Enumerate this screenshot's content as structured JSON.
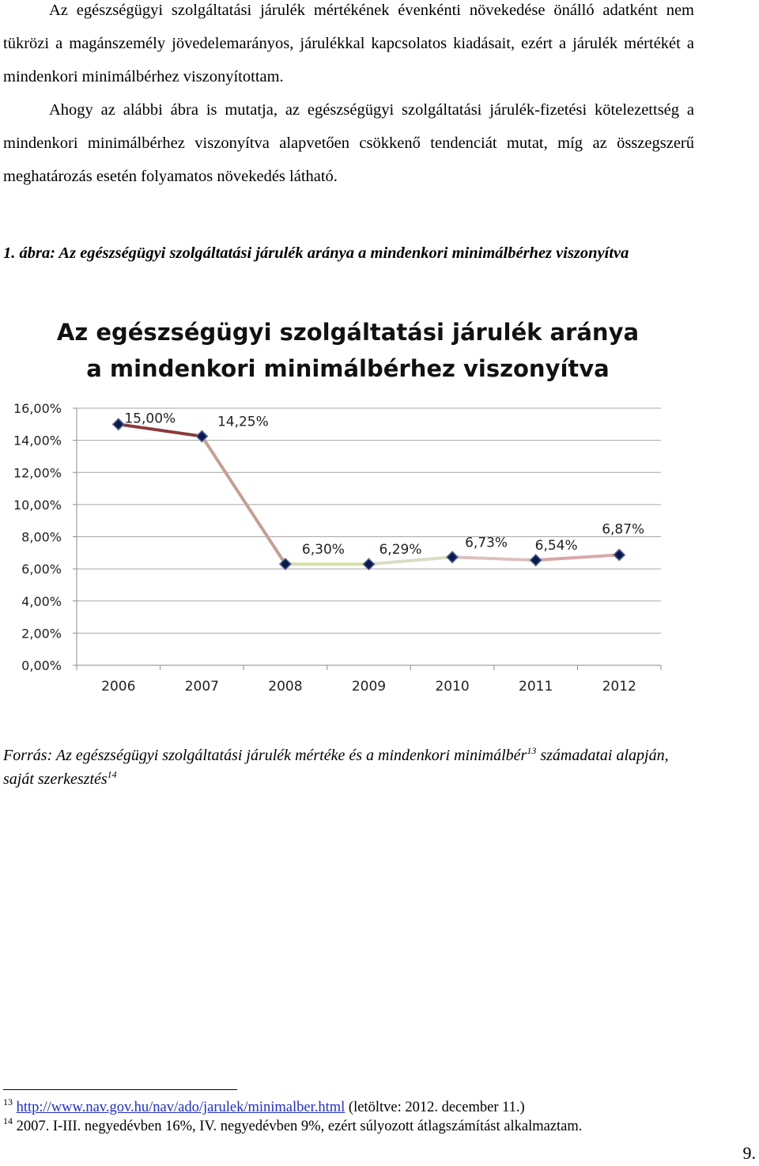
{
  "paragraphs": {
    "p1": "Az egészségügyi szolgáltatási járulék mértékének évenkénti növekedése önálló adatként nem tükrözi a magánszemély jövedelemarányos, járulékkal kapcsolatos kiadásait, ezért a járulék mértékét a mindenkori minimálbérhez viszonyítottam.",
    "p2": "Ahogy az alábbi ábra is mutatja, az egészségügyi szolgáltatási járulék-fizetési kötelezettség a mindenkori minimálbérhez viszonyítva alapvetően csökkenő tendenciát mutat, míg az összegszerű meghatározás esetén folyamatos növekedés látható."
  },
  "figure_caption": "1. ábra: Az egészségügyi szolgáltatási járulék aránya a mindenkori minimálbérhez viszonyítva",
  "chart_data": {
    "type": "line",
    "title_line1": "Az egészségügyi szolgáltatási járulék aránya",
    "title_line2": "a mindenkori minimálbérhez viszonyítva",
    "categories": [
      "2006",
      "2007",
      "2008",
      "2009",
      "2010",
      "2011",
      "2012"
    ],
    "values": [
      15.0,
      14.25,
      6.3,
      6.29,
      6.73,
      6.54,
      6.87
    ],
    "data_labels": [
      "15,00%",
      "14,25%",
      "6,30%",
      "6,29%",
      "6,73%",
      "6,54%",
      "6,87%"
    ],
    "y_ticks": [
      "0,00%",
      "2,00%",
      "4,00%",
      "6,00%",
      "8,00%",
      "10,00%",
      "12,00%",
      "14,00%",
      "16,00%"
    ],
    "ylim": [
      0,
      16
    ],
    "grid": true,
    "legend": "none",
    "segment_colors": [
      "#8c3a3a",
      "#c4a090",
      "#d7e0a8",
      "#dadcc4",
      "#dcc0c0",
      "#d8a8a8"
    ],
    "marker_color": "#0a1a4a"
  },
  "source": {
    "text_a": "Forrás: Az egészségügyi szolgáltatási járulék mértéke és a mindenkori minimálbér",
    "sup_a": "13",
    "text_b": " számadatai alapján, saját szerkesztés",
    "sup_b": "14"
  },
  "footnotes": {
    "fn13_num": "13",
    "fn13_link": "http://www.nav.gov.hu/nav/ado/jarulek/minimalber.html",
    "fn13_text": " (letöltve: 2012. december 11.)",
    "fn14_num": "14",
    "fn14_text": " 2007. I-III. negyedévben 16%, IV. negyedévben 9%, ezért súlyozott átlagszámítást alkalmaztam."
  },
  "page_number": "9."
}
